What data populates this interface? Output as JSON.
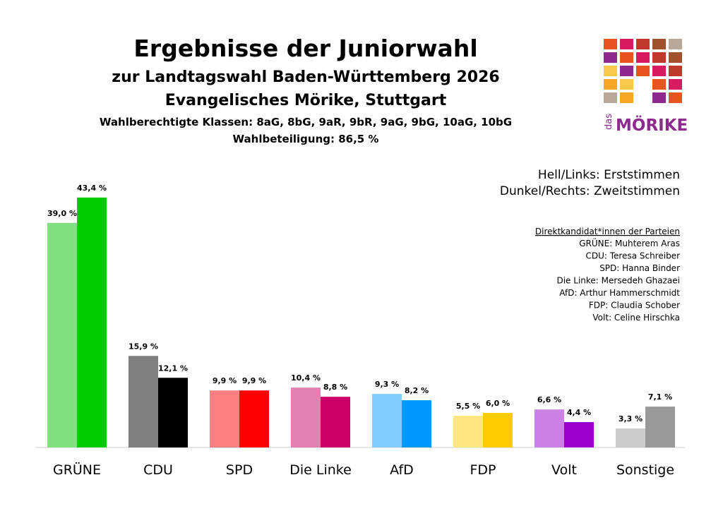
{
  "chart_data": {
    "type": "bar",
    "title": "Ergebnisse der Juniorwahl",
    "subtitles": [
      "zur Landtagswahl Baden-Württemberg 2026",
      "Evangelisches Mörike, Stuttgart",
      "Wahlberechtigte Klassen: 8aG, 8bG, 9aR, 9bR, 9aG, 9bG, 10aG, 10bG",
      "Wahlbeteiligung: 86,5 %"
    ],
    "legend": [
      "Hell/Links: Erststimmen",
      "Dunkel/Rechts: Zweitstimmen"
    ],
    "candidates_heading": "Direktkandidat*innen der Parteien",
    "candidates": [
      "GRÜNE: Muhterem Aras",
      "CDU: Teresa Schreiber",
      "SPD: Hanna Binder",
      "Die Linke: Mersedeh Ghazaei",
      "AfD: Arthur Hammerschmidt",
      "FDP: Claudia Schober",
      "Volt: Celine Hirschka"
    ],
    "logo": {
      "prefix": "das",
      "name": "MÖRIKE"
    },
    "categories": [
      "GRÜNE",
      "CDU",
      "SPD",
      "Die Linke",
      "AfD",
      "FDP",
      "Volt",
      "Sonstige"
    ],
    "series": [
      {
        "colors": [
          "#80e080",
          "#808080",
          "#ff8080",
          "#e580b3",
          "#80ccff",
          "#ffe680",
          "#cc80e6",
          "#cccccc"
        ],
        "values": [
          39.0,
          15.9,
          9.9,
          10.4,
          9.3,
          5.5,
          6.6,
          3.3
        ],
        "value_labels": [
          "39,0 %",
          "15,9 %",
          "9,9 %",
          "10,4 %",
          "9,3 %",
          "5,5 %",
          "6,6 %",
          "3,3 %"
        ]
      },
      {
        "colors": [
          "#00cc00",
          "#000000",
          "#ff0000",
          "#cc0066",
          "#0099ff",
          "#ffcc00",
          "#9900cc",
          "#999999"
        ],
        "values": [
          43.4,
          12.1,
          9.9,
          8.8,
          8.2,
          6.0,
          4.4,
          7.1
        ],
        "value_labels": [
          "43,4 %",
          "12,1 %",
          "9,9 %",
          "8,8 %",
          "8,2 %",
          "6,0 %",
          "4,4 %",
          "7,1 %"
        ]
      }
    ]
  }
}
